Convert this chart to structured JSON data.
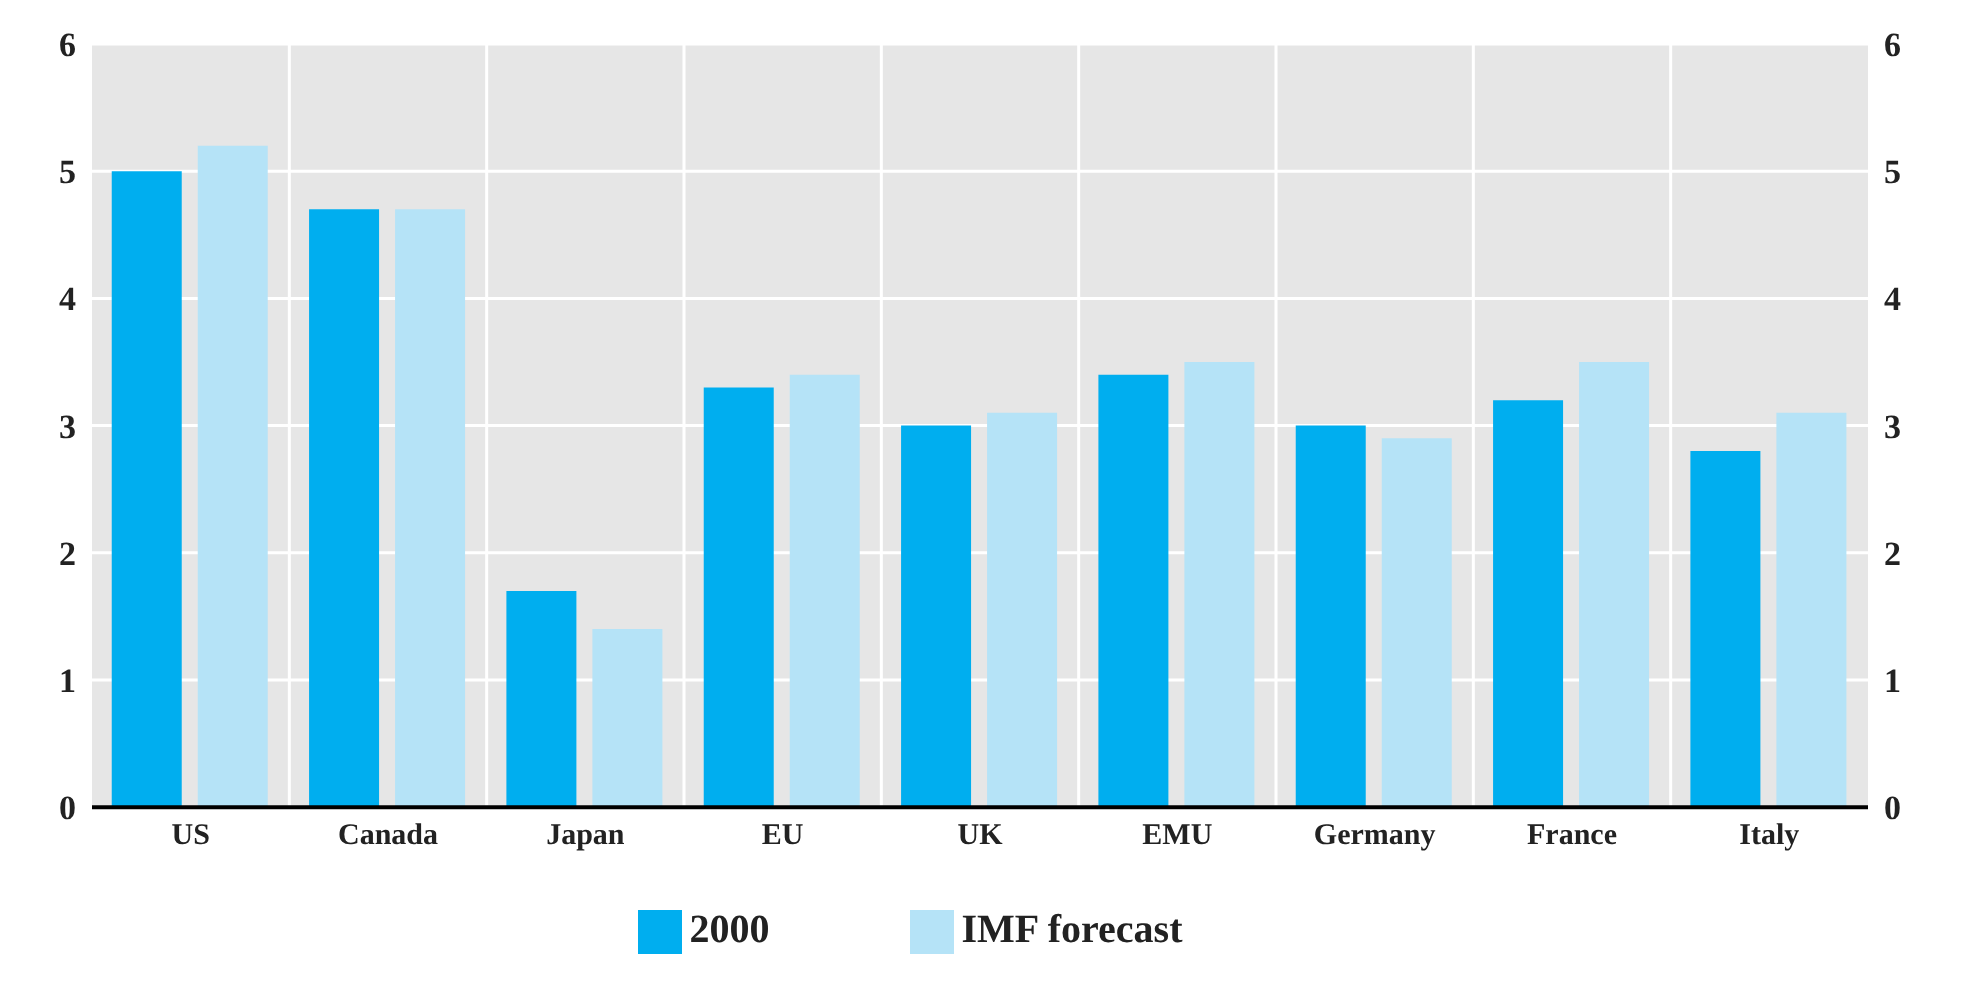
{
  "chart_data": {
    "type": "bar",
    "categories": [
      "US",
      "Canada",
      "Japan",
      "EU",
      "UK",
      "EMU",
      "Germany",
      "France",
      "Italy"
    ],
    "series": [
      {
        "name": "2000",
        "color": "#00aeef",
        "values": [
          5.0,
          4.7,
          1.7,
          3.3,
          3.0,
          3.4,
          3.0,
          3.2,
          2.8
        ]
      },
      {
        "name": "IMF forecast",
        "color": "#b5e3f7",
        "values": [
          5.2,
          4.7,
          1.4,
          3.4,
          3.1,
          3.5,
          2.9,
          3.5,
          3.1
        ]
      }
    ],
    "ylim": [
      0,
      6
    ],
    "yticks": [
      0,
      1,
      2,
      3,
      4,
      5,
      6
    ],
    "y2lim": [
      0,
      6
    ],
    "y2ticks": [
      0,
      1,
      2,
      3,
      4,
      5,
      6
    ],
    "grid": true,
    "legend": "bottom"
  }
}
